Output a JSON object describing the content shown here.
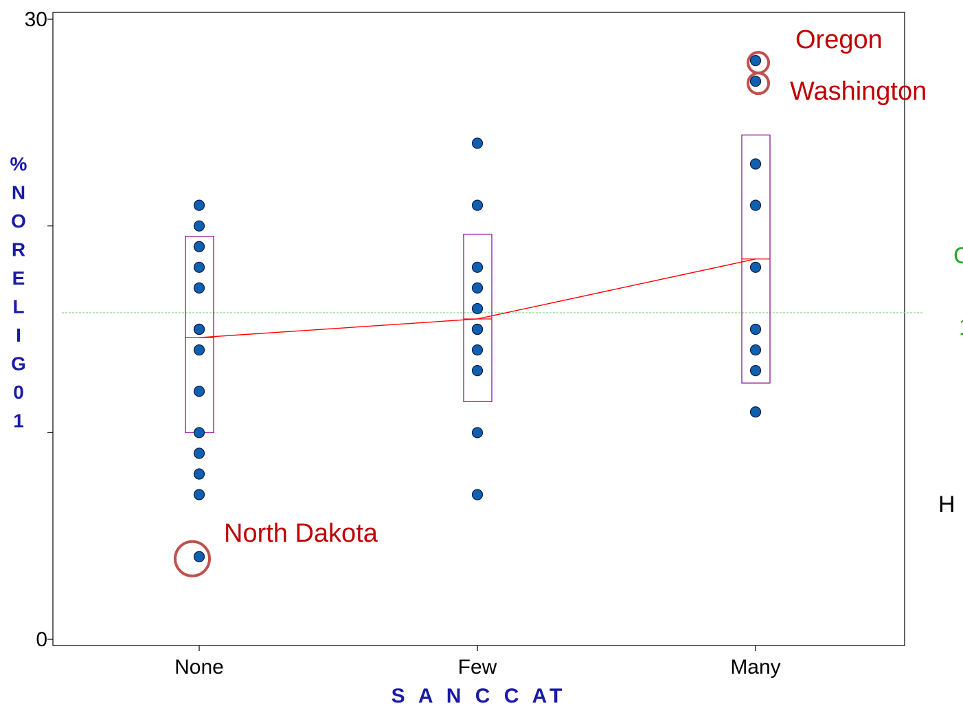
{
  "chart_data": {
    "type": "scatter",
    "title": "",
    "xlabel": "S A N C C AT",
    "ylabel": "%NORELIG01",
    "categories": [
      "None",
      "Few",
      "Many"
    ],
    "ylim": [
      0,
      30
    ],
    "yticks": [
      0,
      10,
      20,
      30
    ],
    "yticks_labeled": [
      "0",
      "30"
    ],
    "grid": false,
    "series": [
      {
        "category": "None",
        "values": [
          21,
          20,
          19,
          18,
          17,
          15,
          15,
          14,
          12,
          10,
          9,
          8,
          7,
          4
        ]
      },
      {
        "category": "Few",
        "values": [
          24,
          21,
          18,
          17,
          16,
          15,
          15,
          14,
          13,
          10,
          7
        ]
      },
      {
        "category": "Many",
        "values": [
          28,
          27,
          23,
          21,
          18,
          15,
          14,
          13,
          11
        ]
      }
    ],
    "boxes": [
      {
        "category": "None",
        "low": 10,
        "high": 19.5,
        "median": 14.6
      },
      {
        "category": "Few",
        "low": 11.5,
        "high": 19.6,
        "median": 15.5
      },
      {
        "category": "Many",
        "low": 12.4,
        "high": 24.4,
        "median": 18.4
      }
    ],
    "mean_line": {
      "values": [
        14.6,
        15.5,
        18.4
      ],
      "color": "#ff0000"
    },
    "reference_line": {
      "value": 15.8,
      "color": "#7fd67f"
    },
    "annotations": [
      {
        "text": "Oregon",
        "category": "Many",
        "value": 28
      },
      {
        "text": "Washington",
        "category": "Many",
        "value": 27
      },
      {
        "text": "North Dakota",
        "category": "None",
        "value": 4
      }
    ],
    "edge_text": [
      {
        "text": "C",
        "color": "#22aa22"
      },
      {
        "text": "1",
        "color": "#22aa22"
      },
      {
        "text": "H",
        "color": "#000000"
      }
    ],
    "colors": {
      "point_fill": "#1060b0",
      "point_stroke": "#0a1a4a",
      "box_stroke": "#a020a0",
      "annotation": "#c00000",
      "highlight_circle": "#c0504d"
    }
  }
}
